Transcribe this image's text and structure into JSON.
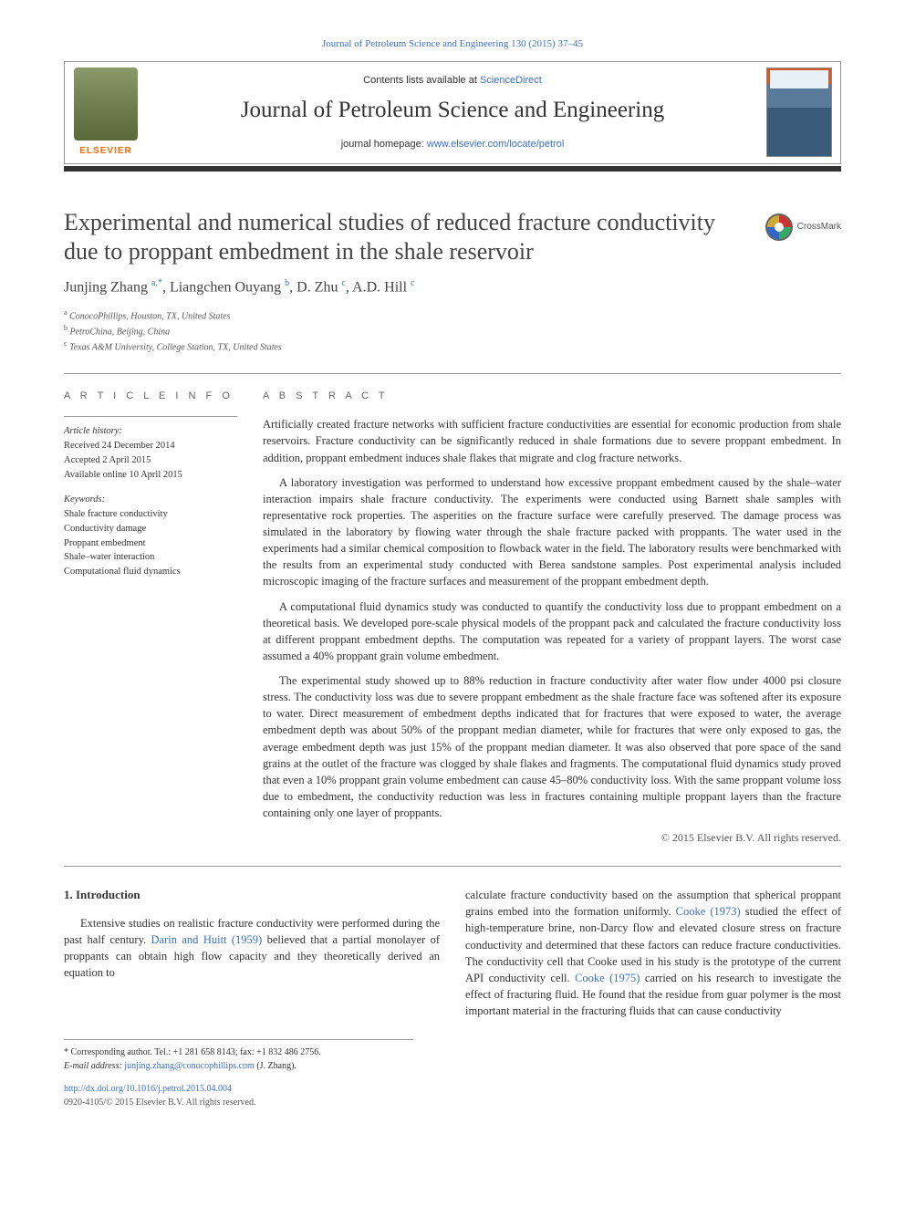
{
  "top_link": {
    "prefix": "Journal of Petroleum Science and Engineering 130 (2015) 37–45"
  },
  "masthead": {
    "contents_prefix": "Contents lists available at ",
    "contents_link": "ScienceDirect",
    "journal_name": "Journal of Petroleum Science and Engineering",
    "homepage_prefix": "journal homepage: ",
    "homepage_link": "www.elsevier.com/locate/petrol",
    "publisher_logo": "ELSEVIER"
  },
  "article": {
    "title": "Experimental and numerical studies of reduced fracture conductivity due to proppant embedment in the shale reservoir",
    "crossmark": "CrossMark",
    "authors_html": "Junjing Zhang <sup>a,</sup><a href='#'><sup>*</sup></a>, Liangchen Ouyang <sup>b</sup>, D. Zhu <sup>c</sup>, A.D. Hill <sup>c</sup>",
    "affiliations": [
      {
        "sup": "a",
        "text": "ConocoPhillips, Houston, TX, United States"
      },
      {
        "sup": "b",
        "text": "PetroChina, Beijing, China"
      },
      {
        "sup": "c",
        "text": "Texas A&M University, College Station, TX, United States"
      }
    ]
  },
  "info": {
    "heading": "A R T I C L E  I N F O",
    "history_label": "Article history:",
    "history": [
      "Received 24 December 2014",
      "Accepted 2 April 2015",
      "Available online 10 April 2015"
    ],
    "keywords_label": "Keywords:",
    "keywords": [
      "Shale fracture conductivity",
      "Conductivity damage",
      "Proppant embedment",
      "Shale–water interaction",
      "Computational fluid dynamics"
    ]
  },
  "abstract": {
    "heading": "A B S T R A C T",
    "paragraphs": [
      "Artificially created fracture networks with sufficient fracture conductivities are essential for economic production from shale reservoirs. Fracture conductivity can be significantly reduced in shale formations due to severe proppant embedment. In addition, proppant embedment induces shale flakes that migrate and clog fracture networks.",
      "A laboratory investigation was performed to understand how excessive proppant embedment caused by the shale–water interaction impairs shale fracture conductivity. The experiments were conducted using Barnett shale samples with representative rock properties. The asperities on the fracture surface were carefully preserved. The damage process was simulated in the laboratory by flowing water through the shale fracture packed with proppants. The water used in the experiments had a similar chemical composition to flowback water in the field. The laboratory results were benchmarked with the results from an experimental study conducted with Berea sandstone samples. Post experimental analysis included microscopic imaging of the fracture surfaces and measurement of the proppant embedment depth.",
      "A computational fluid dynamics study was conducted to quantify the conductivity loss due to proppant embedment on a theoretical basis. We developed pore-scale physical models of the proppant pack and calculated the fracture conductivity loss at different proppant embedment depths. The computation was repeated for a variety of proppant layers. The worst case assumed a 40% proppant grain volume embedment.",
      "The experimental study showed up to 88% reduction in fracture conductivity after water flow under 4000 psi closure stress. The conductivity loss was due to severe proppant embedment as the shale fracture face was softened after its exposure to water. Direct measurement of embedment depths indicated that for fractures that were exposed to water, the average embedment depth was about 50% of the proppant median diameter, while for fractures that were only exposed to gas, the average embedment depth was just 15% of the proppant median diameter. It was also observed that pore space of the sand grains at the outlet of the fracture was clogged by shale flakes and fragments. The computational fluid dynamics study proved that even a 10% proppant grain volume embedment can cause 45–80% conductivity loss. With the same proppant volume loss due to embedment, the conductivity reduction was less in fractures containing multiple proppant layers than the fracture containing only one layer of proppants."
    ],
    "copyright": "© 2015 Elsevier B.V. All rights reserved."
  },
  "body": {
    "section_heading": "1. Introduction",
    "left": "Extensive studies on realistic fracture conductivity were performed during the past half century. <a href='#'>Darin and Huitt (1959)</a> believed that a partial monolayer of proppants can obtain high flow capacity and they theoretically derived an equation to",
    "right": "calculate fracture conductivity based on the assumption that spherical proppant grains embed into the formation uniformly. <a href='#'>Cooke (1973)</a> studied the effect of high-temperature brine, non-Darcy flow and elevated closure stress on fracture conductivity and determined that these factors can reduce fracture conductivities. The conductivity cell that Cooke used in his study is the prototype of the current API conductivity cell. <a href='#'>Cooke (1975)</a> carried on his research to investigate the effect of fracturing fluid. He found that the residue from guar polymer is the most important material in the fracturing fluids that can cause conductivity"
  },
  "footnotes": {
    "corr": "* Corresponding author. Tel.: +1 281 658 8143; fax: +1 832 486 2756.",
    "email_label": "E-mail address: ",
    "email": "junjing.zhang@conocophillips.com",
    "email_suffix": " (J. Zhang)."
  },
  "pub": {
    "doi": "http://dx.doi.org/10.1016/j.petrol.2015.04.004",
    "issn": "0920-4105/© 2015 Elsevier B.V. All rights reserved."
  },
  "colors": {
    "link": "#3a6fc4",
    "accent": "#ff6a00",
    "rule": "#999",
    "titlebar": "#333"
  }
}
